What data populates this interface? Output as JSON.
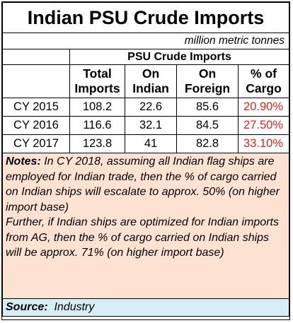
{
  "title": "Indian PSU Crude Imports",
  "units": "million metric tonnes",
  "subtitle": "PSU Crude Imports",
  "columns": [
    "Total Imports",
    "On Indian",
    "On Foreign",
    "% of Cargo"
  ],
  "column_lines": [
    [
      "Total",
      "Imports"
    ],
    [
      "On",
      "Indian"
    ],
    [
      "On",
      "Foreign"
    ],
    [
      "% of",
      "Cargo"
    ]
  ],
  "rows": [
    {
      "label": "CY 2015",
      "total": "108.2",
      "indian": "22.6",
      "foreign": "85.6",
      "pct": "20.90%"
    },
    {
      "label": "CY 2016",
      "total": "116.6",
      "indian": "32.1",
      "foreign": "84.5",
      "pct": "27.50%"
    },
    {
      "label": "CY 2017",
      "total": "123.8",
      "indian": "41",
      "foreign": "82.8",
      "pct": "33.10%"
    }
  ],
  "notes": {
    "label": "Notes:",
    "text1": " In CY 2018, assuming all Indian flag ships are employed for Indian trade, then the % of cargo carried on Indian ships will escalate to approx. 50% (on higher import base)",
    "text2": "Further, if Indian ships are optimized for Indian imports from AG, then the % of cargo carried on Indian ships will be approx. 71% (on higher import base)"
  },
  "source": {
    "label": "Source:",
    "value": "Industry"
  },
  "colors": {
    "pct_text": "#e8231e",
    "notes_bg": "#fde2d2",
    "source_bg": "#d8eef7"
  },
  "chart_data": {
    "type": "table",
    "title": "Indian PSU Crude Imports",
    "subtitle": "PSU Crude Imports",
    "units": "million metric tonnes",
    "columns": [
      "Total Imports",
      "On Indian",
      "On Foreign",
      "% of Cargo"
    ],
    "categories": [
      "CY 2015",
      "CY 2016",
      "CY 2017"
    ],
    "series": [
      {
        "name": "Total Imports",
        "values": [
          108.2,
          116.6,
          123.8
        ]
      },
      {
        "name": "On Indian",
        "values": [
          22.6,
          32.1,
          41
        ]
      },
      {
        "name": "On Foreign",
        "values": [
          85.6,
          84.5,
          82.8
        ]
      },
      {
        "name": "% of Cargo",
        "values": [
          20.9,
          27.5,
          33.1
        ]
      }
    ]
  }
}
